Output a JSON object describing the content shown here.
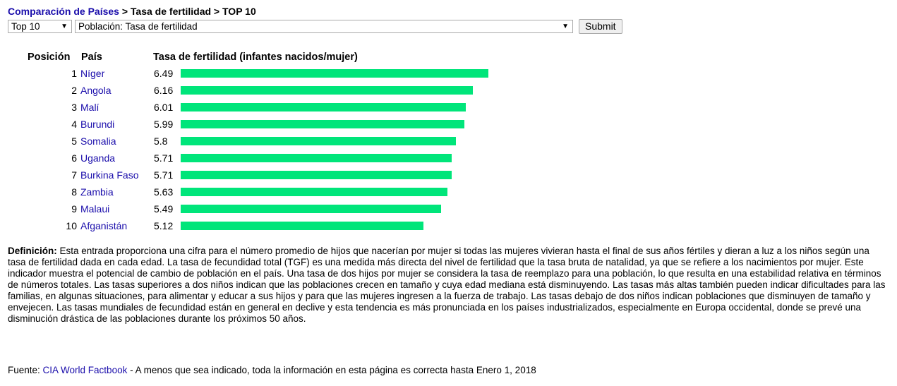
{
  "breadcrumb": {
    "link": "Comparación de Países",
    "sep1": " > ",
    "level2": "Tasa de fertilidad",
    "sep2": " > ",
    "level3": "TOP 10"
  },
  "controls": {
    "top_select": "Top 10",
    "field_select": "Población: Tasa de fertilidad",
    "submit_label": "Submit"
  },
  "table": {
    "header_position": "Posición",
    "header_country": "País",
    "header_rate": "Tasa de fertilidad (infantes nacidos/mujer)",
    "bar_color": "#00e57a",
    "rows": [
      {
        "rank": "1",
        "country": "Níger",
        "value": "6.49",
        "v": 6.49
      },
      {
        "rank": "2",
        "country": "Angola",
        "value": "6.16",
        "v": 6.16
      },
      {
        "rank": "3",
        "country": "Malí",
        "value": "6.01",
        "v": 6.01
      },
      {
        "rank": "4",
        "country": "Burundi",
        "value": "5.99",
        "v": 5.99
      },
      {
        "rank": "5",
        "country": "Somalia",
        "value": "5.8",
        "v": 5.8
      },
      {
        "rank": "6",
        "country": "Uganda",
        "value": "5.71",
        "v": 5.71
      },
      {
        "rank": "7",
        "country": "Burkina Faso",
        "value": "5.71",
        "v": 5.71
      },
      {
        "rank": "8",
        "country": "Zambia",
        "value": "5.63",
        "v": 5.63
      },
      {
        "rank": "9",
        "country": "Malaui",
        "value": "5.49",
        "v": 5.49
      },
      {
        "rank": "10",
        "country": "Afganistán",
        "value": "5.12",
        "v": 5.12
      }
    ]
  },
  "definition": {
    "label": "Definición:",
    "text": " Esta entrada proporciona una cifra para el número promedio de hijos que nacerían por mujer si todas las mujeres vivieran hasta el final de sus años fértiles y dieran a luz a los niños según una tasa de fertilidad dada en cada edad. La tasa de fecundidad total (TGF) es una medida más directa del nivel de fertilidad que la tasa bruta de natalidad, ya que se refiere a los nacimientos por mujer. Este indicador muestra el potencial de cambio de población en el país. Una tasa de dos hijos por mujer se considera la tasa de reemplazo para una población, lo que resulta en una estabilidad relativa en términos de números totales. Las tasas superiores a dos niños indican que las poblaciones crecen en tamaño y cuya edad mediana está disminuyendo. Las tasas más altas también pueden indicar dificultades para las familias, en algunas situaciones, para alimentar y educar a sus hijos y para que las mujeres ingresen a la fuerza de trabajo. Las tasas debajo de dos niños indican poblaciones que disminuyen de tamaño y envejecen. Las tasas mundiales de fecundidad están en general en declive y esta tendencia es más pronunciada en los países industrializados, especialmente en Europa occidental, donde se prevé una disminución drástica de las poblaciones durante los próximos 50 años."
  },
  "source": {
    "label": "Fuente: ",
    "link": "CIA World Factbook",
    "text": " - A menos que sea indicado, toda la información en esta página es correcta hasta Enero 1, 2018"
  }
}
